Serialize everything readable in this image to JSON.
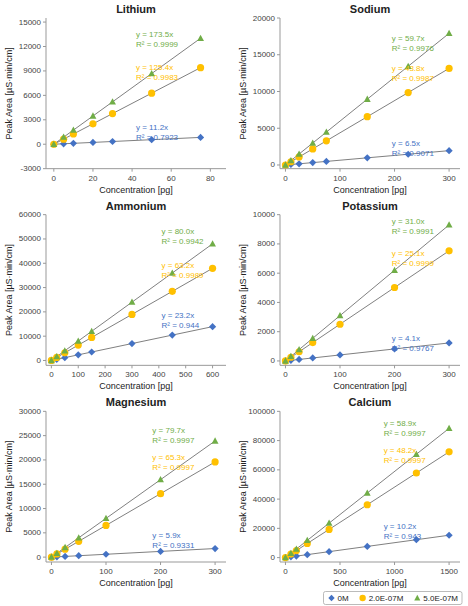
{
  "chart_data": [
    {
      "type": "line",
      "title": "Lithium",
      "xlabel": "Concentration [pg]",
      "ylabel": "Peak Area [µS·min/cm]",
      "xlim": [
        -4,
        88
      ],
      "ylim": [
        -3000,
        15500
      ],
      "xticks": [
        0,
        20,
        40,
        60,
        80
      ],
      "yticks": [
        -3000,
        0,
        3000,
        6000,
        9000,
        12000,
        15000
      ],
      "grid": false,
      "color": "#808080",
      "series": [
        {
          "color": "#4472c4",
          "marker": "diamond",
          "x": [
            0,
            5,
            10,
            20,
            30,
            50,
            75
          ],
          "values": [
            0,
            56,
            112,
            224,
            336,
            560,
            840
          ]
        },
        {
          "color": "#ffc000",
          "marker": "circle",
          "x": [
            0,
            5,
            10,
            20,
            30,
            50,
            75
          ],
          "values": [
            0,
            627,
            1254,
            2508,
            3762,
            6270,
            9405
          ]
        },
        {
          "color": "#70ad47",
          "marker": "triangle",
          "x": [
            0,
            5,
            10,
            20,
            30,
            50,
            75
          ],
          "values": [
            0,
            867.5,
            1735,
            3470,
            5205,
            8675,
            13012.5
          ]
        }
      ],
      "annotations": [
        {
          "text": "y = 173.5x\nR² = 0.9999",
          "x": 42,
          "y": 12800,
          "series": 2
        },
        {
          "text": "y = 125.4x\nR² = 0.9983",
          "x": 42,
          "y": 8800,
          "series": 1
        },
        {
          "text": "y = 11.2x\nR² = 0.7923",
          "x": 42,
          "y": 1500,
          "series": 0
        }
      ]
    },
    {
      "type": "line",
      "title": "Sodium",
      "xlabel": "Concentration [pg]",
      "ylabel": "Peak Area [µS·min/cm]",
      "xlim": [
        -10,
        320
      ],
      "ylim": [
        -500,
        20000
      ],
      "xticks": [
        0,
        100,
        200,
        300
      ],
      "yticks": [
        0,
        5000,
        10000,
        15000,
        20000
      ],
      "grid": false,
      "color": "#808080",
      "series": [
        {
          "color": "#4472c4",
          "marker": "diamond",
          "x": [
            0,
            10,
            25,
            50,
            75,
            150,
            225,
            300
          ],
          "values": [
            0,
            65,
            162.5,
            325,
            487.5,
            975,
            1462.5,
            1950
          ]
        },
        {
          "color": "#ffc000",
          "marker": "circle",
          "x": [
            0,
            10,
            25,
            50,
            75,
            150,
            225,
            300
          ],
          "values": [
            0,
            438,
            1095,
            2190,
            3285,
            6570,
            9855,
            13140
          ]
        },
        {
          "color": "#70ad47",
          "marker": "triangle",
          "x": [
            0,
            10,
            25,
            50,
            75,
            150,
            225,
            300
          ],
          "values": [
            0,
            597,
            1492.5,
            2985,
            4477.5,
            8955,
            13432.5,
            17910
          ]
        }
      ],
      "annotations": [
        {
          "text": "y = 59.7x\nR² = 0.9976",
          "x": 195,
          "y": 16500,
          "series": 2
        },
        {
          "text": "y = 43.8x\nR² = 0.9987",
          "x": 195,
          "y": 12500,
          "series": 1
        },
        {
          "text": "y = 6.5x\nR² = 0.9071",
          "x": 195,
          "y": 2200,
          "series": 0
        }
      ]
    },
    {
      "type": "line",
      "title": "Ammonium",
      "xlabel": "Concentration [pg]",
      "ylabel": "Peak Area [µS·min/cm]",
      "xlim": [
        -20,
        650
      ],
      "ylim": [
        -2000,
        60000
      ],
      "xticks": [
        0,
        100,
        200,
        300,
        400,
        500,
        600
      ],
      "yticks": [
        0,
        10000,
        20000,
        30000,
        40000,
        50000,
        60000
      ],
      "grid": false,
      "color": "#808080",
      "series": [
        {
          "color": "#4472c4",
          "marker": "diamond",
          "x": [
            0,
            20,
            50,
            100,
            150,
            300,
            450,
            600
          ],
          "values": [
            0,
            464,
            1160,
            2320,
            3480,
            6960,
            10440,
            13920
          ]
        },
        {
          "color": "#ffc000",
          "marker": "circle",
          "x": [
            0,
            20,
            50,
            100,
            150,
            300,
            450,
            600
          ],
          "values": [
            0,
            1264,
            3160,
            6320,
            9480,
            18960,
            28440,
            37920
          ]
        },
        {
          "color": "#70ad47",
          "marker": "triangle",
          "x": [
            0,
            20,
            50,
            100,
            150,
            300,
            450,
            600
          ],
          "values": [
            0,
            1600,
            4000,
            8000,
            12000,
            24000,
            36000,
            48000
          ]
        }
      ],
      "annotations": [
        {
          "text": "y = 80.0x\nR² = 0.9942",
          "x": 410,
          "y": 51000,
          "series": 2
        },
        {
          "text": "y = 63.2x\nR² = 0.9989",
          "x": 410,
          "y": 37000,
          "series": 1
        },
        {
          "text": "y = 23.2x\nR² = 0.944",
          "x": 410,
          "y": 16500,
          "series": 0
        }
      ]
    },
    {
      "type": "line",
      "title": "Potassium",
      "xlabel": "Concentration [pg]",
      "ylabel": "Peak Area [µS·min/cm]",
      "xlim": [
        -10,
        320
      ],
      "ylim": [
        -300,
        10000
      ],
      "xticks": [
        0,
        100,
        200,
        300
      ],
      "yticks": [
        0,
        2000,
        4000,
        6000,
        8000,
        10000
      ],
      "grid": false,
      "color": "#808080",
      "series": [
        {
          "color": "#4472c4",
          "marker": "diamond",
          "x": [
            0,
            10,
            25,
            50,
            100,
            200,
            300
          ],
          "values": [
            0,
            41,
            102.5,
            205,
            410,
            820,
            1230
          ]
        },
        {
          "color": "#ffc000",
          "marker": "circle",
          "x": [
            0,
            10,
            25,
            50,
            100,
            200,
            300
          ],
          "values": [
            0,
            251,
            627.5,
            1255,
            2510,
            5020,
            7530
          ]
        },
        {
          "color": "#70ad47",
          "marker": "triangle",
          "x": [
            0,
            10,
            25,
            50,
            100,
            200,
            300
          ],
          "values": [
            0,
            310,
            775,
            1550,
            3100,
            6200,
            9300
          ]
        }
      ],
      "annotations": [
        {
          "text": "y = 31.0x\nR² = 0.9991",
          "x": 195,
          "y": 9200,
          "series": 2
        },
        {
          "text": "y = 25.1x\nR² = 0.9999",
          "x": 195,
          "y": 7000,
          "series": 1
        },
        {
          "text": "y = 4.1x\nR² = 0.9767",
          "x": 195,
          "y": 1200,
          "series": 0
        }
      ]
    },
    {
      "type": "line",
      "title": "Magnesium",
      "xlabel": "Concentration [pg]",
      "ylabel": "Peak Area [µS·min/cm]",
      "xlim": [
        -10,
        320
      ],
      "ylim": [
        -1000,
        30000
      ],
      "xticks": [
        0,
        100,
        200,
        300
      ],
      "yticks": [
        0,
        5000,
        10000,
        15000,
        20000,
        25000,
        30000
      ],
      "grid": false,
      "color": "#808080",
      "series": [
        {
          "color": "#4472c4",
          "marker": "diamond",
          "x": [
            0,
            10,
            25,
            50,
            100,
            200,
            300
          ],
          "values": [
            0,
            59,
            147.5,
            295,
            590,
            1180,
            1770
          ]
        },
        {
          "color": "#ffc000",
          "marker": "circle",
          "x": [
            0,
            10,
            25,
            50,
            100,
            200,
            300
          ],
          "values": [
            0,
            653,
            1632.5,
            3265,
            6530,
            13060,
            19590
          ]
        },
        {
          "color": "#70ad47",
          "marker": "triangle",
          "x": [
            0,
            10,
            25,
            50,
            100,
            200,
            300
          ],
          "values": [
            0,
            797,
            1992.5,
            3985,
            7970,
            15940,
            23910
          ]
        }
      ],
      "annotations": [
        {
          "text": "y = 79.7x\nR² = 0.9997",
          "x": 185,
          "y": 25000,
          "series": 2
        },
        {
          "text": "y = 65.3x\nR² = 0.9997",
          "x": 185,
          "y": 19500,
          "series": 1
        },
        {
          "text": "y = 5.9x\nR² = 0.9331",
          "x": 185,
          "y": 3500,
          "series": 0
        }
      ]
    },
    {
      "type": "line",
      "title": "Calcium",
      "xlabel": "Concentration [pg]",
      "ylabel": "Peak Area [µS·min/cm]",
      "xlim": [
        -50,
        1600
      ],
      "ylim": [
        -3000,
        100000
      ],
      "xticks": [
        0,
        500,
        1000,
        1500
      ],
      "yticks": [
        0,
        20000,
        40000,
        60000,
        80000,
        100000
      ],
      "grid": false,
      "color": "#808080",
      "legend": "lower right",
      "series": [
        {
          "name": "0M",
          "color": "#4472c4",
          "marker": "diamond",
          "x": [
            0,
            50,
            100,
            200,
            400,
            750,
            1200,
            1500
          ],
          "values": [
            0,
            510,
            1020,
            2040,
            4080,
            7650,
            12240,
            15300
          ]
        },
        {
          "name": "2.0E-07M",
          "color": "#ffc000",
          "marker": "circle",
          "x": [
            0,
            50,
            100,
            200,
            400,
            750,
            1200,
            1500
          ],
          "values": [
            0,
            2410,
            4820,
            9640,
            19280,
            36150,
            57840,
            72300
          ]
        },
        {
          "name": "5.0E-07M",
          "color": "#70ad47",
          "marker": "triangle",
          "x": [
            0,
            50,
            100,
            200,
            400,
            750,
            1200,
            1500
          ],
          "values": [
            0,
            2945,
            5890,
            11780,
            23560,
            44175,
            70680,
            88350
          ]
        }
      ],
      "annotations": [
        {
          "text": "y = 58.9x\nR² = 0.9997",
          "x": 900,
          "y": 88000,
          "series": 2
        },
        {
          "text": "y = 48.2x\nR² = 0.9997",
          "x": 900,
          "y": 70000,
          "series": 1
        },
        {
          "text": "y = 10.2x\nR² = 0.943",
          "x": 900,
          "y": 18000,
          "series": 0
        }
      ]
    }
  ]
}
